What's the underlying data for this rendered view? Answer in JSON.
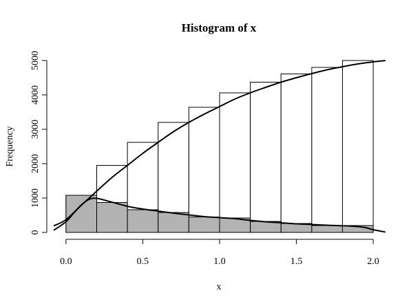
{
  "chart_data": {
    "type": "bar",
    "title": "Histogram of x",
    "xlabel": "x",
    "ylabel": "Frequency",
    "xlim": [
      -0.08,
      2.08
    ],
    "ylim": [
      0,
      5000
    ],
    "x_ticks": [
      0.0,
      0.5,
      1.0,
      1.5,
      2.0
    ],
    "x_tick_labels": [
      "0.0",
      "0.5",
      "1.0",
      "1.5",
      "2.0"
    ],
    "y_ticks": [
      0,
      1000,
      2000,
      3000,
      4000,
      5000
    ],
    "y_tick_labels": [
      "0",
      "1000",
      "2000",
      "3000",
      "4000",
      "5000"
    ],
    "bin_edges": [
      0.0,
      0.2,
      0.4,
      0.6,
      0.8,
      1.0,
      1.2,
      1.4,
      1.6,
      1.8,
      2.0
    ],
    "series": [
      {
        "kind": "cumulative",
        "fill": "#ffffff",
        "values": [
          1080,
          1950,
          2620,
          3200,
          3640,
          4060,
          4370,
          4610,
          4800,
          5000
        ]
      },
      {
        "kind": "histogram",
        "fill": "#b3b3b3",
        "values": [
          1080,
          870,
          660,
          580,
          450,
          420,
          320,
          260,
          200,
          200
        ]
      }
    ],
    "curves": [
      {
        "kind": "cdf-curve",
        "x": [
          -0.08,
          0.0,
          0.1,
          0.2,
          0.3,
          0.4,
          0.5,
          0.6,
          0.7,
          0.8,
          0.9,
          1.0,
          1.1,
          1.2,
          1.3,
          1.4,
          1.5,
          1.6,
          1.7,
          1.8,
          1.9,
          2.0,
          2.08
        ],
        "y": [
          190,
          370,
          790,
          1200,
          1600,
          1950,
          2300,
          2620,
          2930,
          3200,
          3440,
          3660,
          3880,
          4060,
          4220,
          4370,
          4500,
          4620,
          4730,
          4820,
          4900,
          4960,
          5000
        ]
      },
      {
        "kind": "density-curve",
        "x": [
          -0.08,
          0.0,
          0.05,
          0.1,
          0.15,
          0.2,
          0.3,
          0.4,
          0.5,
          0.6,
          0.7,
          0.8,
          0.9,
          1.0,
          1.1,
          1.2,
          1.3,
          1.4,
          1.5,
          1.6,
          1.7,
          1.8,
          1.9,
          1.95,
          2.0,
          2.08
        ],
        "y": [
          60,
          310,
          560,
          800,
          960,
          990,
          880,
          760,
          680,
          620,
          560,
          510,
          460,
          430,
          400,
          350,
          310,
          280,
          250,
          230,
          210,
          195,
          170,
          140,
          80,
          10
        ]
      }
    ]
  }
}
